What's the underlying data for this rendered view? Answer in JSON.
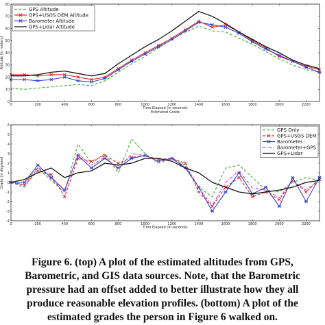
{
  "caption": {
    "lines": [
      "Figure 6. (top) A plot of the estimated altitudes from GPS,",
      "Barometric, and GIS data sources. Note, that the Barometric",
      "pressure had an offset added to better illustrate how they all",
      "produce reasonable elevation profiles. (bottom) A plot of the",
      "estimated grades the person in Figure 6 walked on."
    ]
  },
  "chart_data": [
    {
      "type": "line",
      "xlabel": "Time Elapsed (in seconds)",
      "xlabel2": "Estimated Grade",
      "ylabel": "Altitude (in meters)",
      "xlim": [
        0,
        2300
      ],
      "ylim": [
        0,
        80
      ],
      "xticks": [
        0,
        200,
        400,
        600,
        800,
        1000,
        1200,
        1400,
        1600,
        1800,
        2000,
        2200
      ],
      "yticks": [
        0,
        10,
        20,
        30,
        40,
        50,
        60,
        70,
        80
      ],
      "legend_position": "top-left",
      "series": [
        {
          "name": "GPS Altitude",
          "color": "#44aa33",
          "style": "dashed",
          "marker": "none",
          "x": [
            0,
            100,
            200,
            300,
            400,
            500,
            600,
            700,
            800,
            900,
            1000,
            1100,
            1200,
            1300,
            1400,
            1500,
            1600,
            1700,
            1800,
            1900,
            2000,
            2100,
            2200,
            2300
          ],
          "y": [
            11,
            10,
            11,
            12,
            13,
            14,
            13,
            17,
            24,
            31,
            37,
            44,
            51,
            57,
            62,
            58,
            57,
            52,
            47,
            41,
            35,
            30,
            26,
            24
          ]
        },
        {
          "name": "GPS+USGS DEM Altitude",
          "color": "#dd2222",
          "style": "solid",
          "marker": "x",
          "x": [
            0,
            100,
            200,
            300,
            400,
            500,
            600,
            700,
            800,
            900,
            1000,
            1100,
            1200,
            1300,
            1400,
            1500,
            1600,
            1700,
            1800,
            1900,
            2000,
            2100,
            2200,
            2300
          ],
          "y": [
            22,
            22,
            21,
            22,
            22,
            20,
            18,
            20,
            27,
            34,
            40,
            46,
            52,
            59,
            66,
            61,
            63,
            57,
            50,
            44,
            37,
            33,
            29,
            26
          ]
        },
        {
          "name": "Barometer Altitude",
          "color": "#3344cc",
          "style": "solid",
          "marker": "*",
          "x": [
            0,
            100,
            200,
            300,
            400,
            500,
            600,
            700,
            800,
            900,
            1000,
            1100,
            1200,
            1300,
            1400,
            1500,
            1600,
            1700,
            1800,
            1900,
            2000,
            2100,
            2200,
            2300
          ],
          "y": [
            18,
            18,
            17,
            18,
            20,
            17,
            16,
            19,
            26,
            33,
            39,
            45,
            51,
            58,
            65,
            63,
            61,
            56,
            49,
            43,
            38,
            33,
            28,
            24
          ]
        },
        {
          "name": "GPS+Lidar Altitude",
          "color": "#111111",
          "style": "solid",
          "marker": "none",
          "x": [
            0,
            100,
            200,
            300,
            400,
            500,
            600,
            700,
            800,
            900,
            1000,
            1100,
            1200,
            1300,
            1400,
            1500,
            1600,
            1700,
            1800,
            1900,
            2000,
            2100,
            2200,
            2300
          ],
          "y": [
            21,
            21,
            22,
            24,
            25,
            23,
            21,
            23,
            31,
            38,
            45,
            51,
            58,
            66,
            74,
            70,
            64,
            57,
            51,
            45,
            40,
            34,
            30,
            27
          ]
        }
      ]
    },
    {
      "type": "line",
      "xlabel": "Time Elapsed (in seconds)",
      "ylabel": "Grade (in degrees)",
      "xlim": [
        0,
        2300
      ],
      "ylim": [
        -4,
        6
      ],
      "xticks": [
        0,
        200,
        400,
        600,
        800,
        1000,
        1200,
        1400,
        1600,
        1800,
        2000,
        2200
      ],
      "yticks": [
        -4,
        -3,
        -2,
        -1,
        0,
        1,
        2,
        3,
        4,
        5,
        6
      ],
      "legend_position": "top-right",
      "series": [
        {
          "name": "GPS Only",
          "color": "#44aa33",
          "style": "dashed",
          "marker": "none",
          "x": [
            0,
            100,
            200,
            300,
            400,
            500,
            600,
            700,
            800,
            900,
            1000,
            1100,
            1200,
            1300,
            1400,
            1500,
            1600,
            1700,
            1800,
            1900,
            2000,
            2100,
            2200,
            2300
          ],
          "y": [
            0,
            -0.5,
            1.5,
            0.2,
            -1,
            4,
            2,
            3,
            1,
            4.5,
            3,
            2,
            2.5,
            1.8,
            -0.5,
            -1.5,
            1.5,
            1.8,
            0.5,
            -0.8,
            -1,
            0,
            0.5,
            0.2
          ]
        },
        {
          "name": "GPS+USGS DEM",
          "color": "#dd2222",
          "style": "dashed",
          "marker": "x",
          "x": [
            0,
            100,
            200,
            300,
            400,
            500,
            600,
            700,
            800,
            900,
            1000,
            1100,
            1200,
            1300,
            1400,
            1500,
            1600,
            1700,
            1800,
            1900,
            2000,
            2100,
            2200,
            2300
          ],
          "y": [
            0,
            -0.3,
            1.2,
            0.8,
            -1.5,
            2.5,
            2.2,
            2.8,
            2,
            2.6,
            2.8,
            2.4,
            2.5,
            2,
            -1,
            -2.5,
            -0.5,
            0.5,
            -1.5,
            -1,
            -1.8,
            0.2,
            -1,
            0.3
          ]
        },
        {
          "name": "Barometer",
          "color": "#3344cc",
          "style": "solid",
          "marker": "*",
          "x": [
            0,
            100,
            200,
            300,
            400,
            500,
            600,
            700,
            800,
            900,
            1000,
            1100,
            1200,
            1300,
            1400,
            1500,
            1600,
            1700,
            1800,
            1900,
            2000,
            2100,
            2200,
            2300
          ],
          "y": [
            0,
            0,
            1.8,
            0.5,
            -0.8,
            2.8,
            1.5,
            2.5,
            1.5,
            2.5,
            2.8,
            2.2,
            2.5,
            1.5,
            -0.5,
            -3,
            -1,
            1,
            -1.2,
            -0.5,
            -2.5,
            0.5,
            -2,
            0.5
          ]
        },
        {
          "name": "Barometer+GPS",
          "color": "#cc33cc",
          "style": "dashdot",
          "marker": "none",
          "x": [
            0,
            100,
            200,
            300,
            400,
            500,
            600,
            700,
            800,
            900,
            1000,
            1100,
            1200,
            1300,
            1400,
            1500,
            1600,
            1700,
            1800,
            1900,
            2000,
            2100,
            2200,
            2300
          ],
          "y": [
            0,
            -0.2,
            1.6,
            0.4,
            -1,
            3,
            1.8,
            2.6,
            1.4,
            3,
            2.8,
            2.2,
            2.4,
            1.7,
            -0.6,
            -2.4,
            0,
            1.2,
            -0.6,
            -0.8,
            -1.6,
            0.2,
            -0.8,
            0.3
          ]
        },
        {
          "name": "GPS+Lidar",
          "color": "#111111",
          "style": "solid",
          "marker": "none",
          "x": [
            0,
            100,
            200,
            300,
            400,
            500,
            600,
            700,
            800,
            900,
            1000,
            1100,
            1200,
            1300,
            1400,
            1500,
            1600,
            1700,
            1800,
            1900,
            2000,
            2100,
            2200,
            2300
          ],
          "y": [
            0,
            0.3,
            1,
            1.5,
            0.5,
            1,
            1.2,
            2,
            1.8,
            2,
            2.5,
            2.5,
            2.2,
            1.5,
            1,
            0,
            -0.5,
            -1,
            -1.2,
            -1,
            -0.8,
            -0.5,
            0,
            0.2
          ]
        }
      ]
    }
  ]
}
